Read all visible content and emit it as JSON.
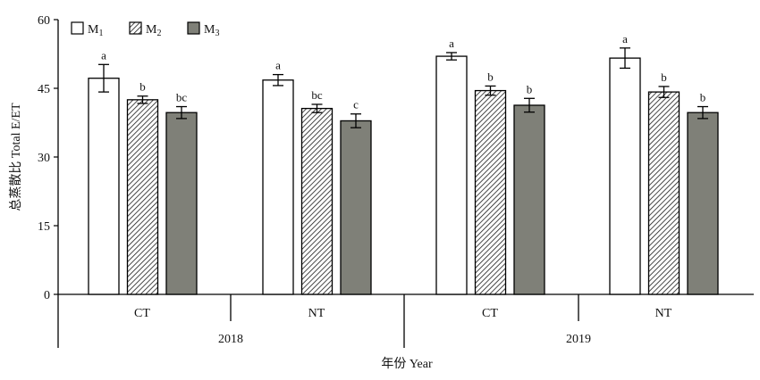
{
  "chart_data": {
    "type": "bar",
    "ylabel": "总蒸散比 Total E/ET",
    "xlabel": "年份 Year",
    "ylim": [
      0,
      60
    ],
    "yticks": [
      0,
      15,
      30,
      45,
      60
    ],
    "years": [
      "2018",
      "2019"
    ],
    "categories": [
      "CT",
      "NT",
      "CT",
      "NT"
    ],
    "category_year_index": [
      0,
      0,
      1,
      1
    ],
    "legend_position": "top-left",
    "grid": false,
    "series": [
      {
        "name": "M1",
        "name_base": "M",
        "name_sub": "1",
        "fill": "white",
        "values": [
          47.2,
          46.8,
          52.0,
          51.6
        ],
        "errors": [
          3.0,
          1.2,
          0.8,
          2.2
        ],
        "labels": [
          "a",
          "a",
          "a",
          "a"
        ]
      },
      {
        "name": "M2",
        "name_base": "M",
        "name_sub": "2",
        "fill": "hatch",
        "values": [
          42.5,
          40.6,
          44.5,
          44.2
        ],
        "errors": [
          0.8,
          0.9,
          1.0,
          1.2
        ],
        "labels": [
          "b",
          "bc",
          "b",
          "b"
        ]
      },
      {
        "name": "M3",
        "name_base": "M",
        "name_sub": "3",
        "fill": "gray",
        "values": [
          39.7,
          37.9,
          41.3,
          39.7
        ],
        "errors": [
          1.3,
          1.5,
          1.5,
          1.3
        ],
        "labels": [
          "bc",
          "c",
          "b",
          "b"
        ]
      }
    ],
    "colors": {
      "white_fill": "#ffffff",
      "gray_fill": "#7f8078",
      "hatch_line": "#1a1a1a",
      "axis": "#000000"
    }
  }
}
